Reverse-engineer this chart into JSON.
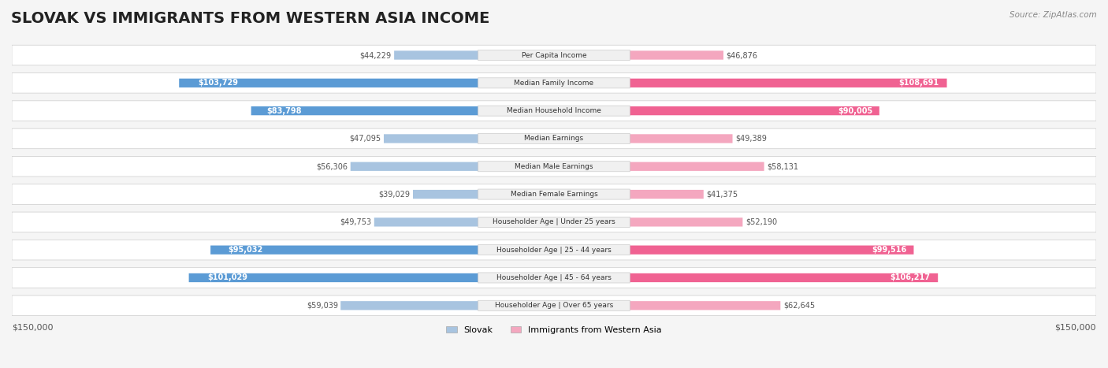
{
  "title": "SLOVAK VS IMMIGRANTS FROM WESTERN ASIA INCOME",
  "source": "Source: ZipAtlas.com",
  "categories": [
    "Per Capita Income",
    "Median Family Income",
    "Median Household Income",
    "Median Earnings",
    "Median Male Earnings",
    "Median Female Earnings",
    "Householder Age | Under 25 years",
    "Householder Age | 25 - 44 years",
    "Householder Age | 45 - 64 years",
    "Householder Age | Over 65 years"
  ],
  "slovak_values": [
    44229,
    103729,
    83798,
    47095,
    56306,
    39029,
    49753,
    95032,
    101029,
    59039
  ],
  "immigrant_values": [
    46876,
    108691,
    90005,
    49389,
    58131,
    41375,
    52190,
    99516,
    106217,
    62645
  ],
  "slovak_labels": [
    "$44,229",
    "$103,729",
    "$83,798",
    "$47,095",
    "$56,306",
    "$39,029",
    "$49,753",
    "$95,032",
    "$101,029",
    "$59,039"
  ],
  "immigrant_labels": [
    "$46,876",
    "$108,691",
    "$90,005",
    "$49,389",
    "$58,131",
    "$41,375",
    "$52,190",
    "$99,516",
    "$106,217",
    "$62,645"
  ],
  "slovak_color_light": "#a8c4e0",
  "slovak_color_dark": "#5b9bd5",
  "immigrant_color_light": "#f4a7bf",
  "immigrant_color_dark": "#f06292",
  "max_value": 150000,
  "background_color": "#f5f5f5",
  "row_bg_color": "#ffffff",
  "label_bg_color": "#f0f0f0",
  "title_fontsize": 14,
  "tick_label": "$150,000",
  "legend_slovak": "Slovak",
  "legend_immigrant": "Immigrants from Western Asia"
}
